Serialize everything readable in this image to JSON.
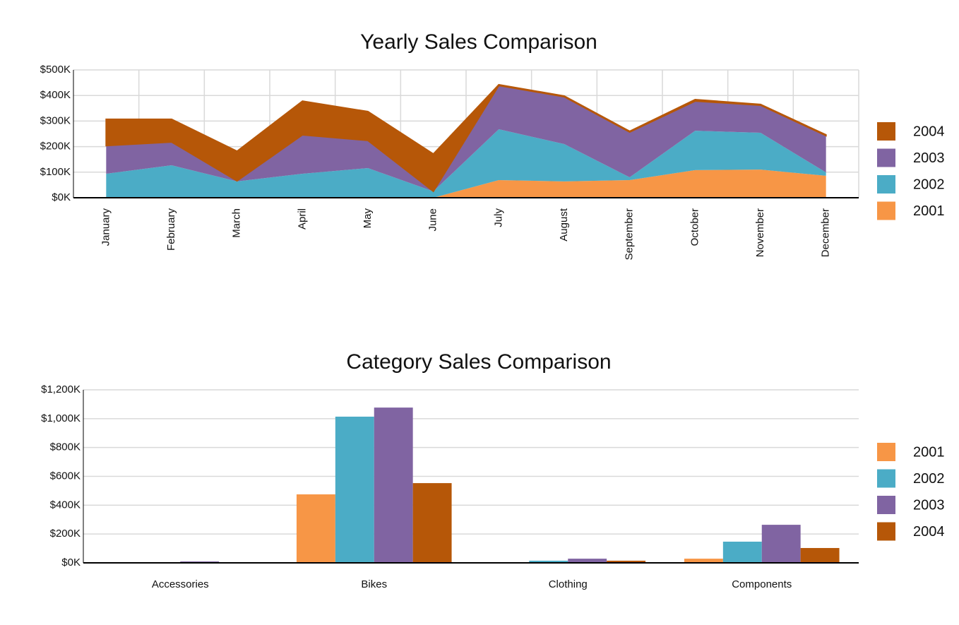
{
  "chart_data": [
    {
      "type": "area",
      "stacked": true,
      "title": "Yearly Sales Comparison",
      "categories": [
        "January",
        "February",
        "March",
        "April",
        "May",
        "June",
        "July",
        "August",
        "September",
        "October",
        "November",
        "December"
      ],
      "series": [
        {
          "name": "2001",
          "color": "#f79646",
          "values": [
            0,
            0,
            0,
            0,
            0,
            0,
            69000,
            64000,
            69000,
            108000,
            110000,
            86000
          ]
        },
        {
          "name": "2002",
          "color": "#4bacc6",
          "values": [
            94000,
            127000,
            64000,
            94000,
            116000,
            25000,
            199000,
            146000,
            11000,
            154000,
            144000,
            13000
          ]
        },
        {
          "name": "2003",
          "color": "#8064a2",
          "values": [
            110000,
            91000,
            2000,
            152000,
            108000,
            0,
            171000,
            185000,
            177000,
            116000,
            108000,
            144000
          ]
        },
        {
          "name": "2004",
          "color": "#b65708",
          "values": [
            103000,
            89000,
            116000,
            132000,
            113000,
            146000,
            3000,
            3000,
            3000,
            6000,
            3000,
            3000
          ]
        }
      ],
      "ylim": [
        0,
        500000
      ],
      "yticks": [
        {
          "value": 0,
          "label": "$0K"
        },
        {
          "value": 100000,
          "label": "$100K"
        },
        {
          "value": 200000,
          "label": "$200K"
        },
        {
          "value": 300000,
          "label": "$300K"
        },
        {
          "value": 400000,
          "label": "$400K"
        },
        {
          "value": 500000,
          "label": "$500K"
        }
      ],
      "grid": true,
      "legend": "right"
    },
    {
      "type": "bar",
      "title": "Category Sales Comparison",
      "categories": [
        "Accessories",
        "Bikes",
        "Clothing",
        "Components"
      ],
      "series": [
        {
          "name": "2001",
          "color": "#f79646",
          "values": [
            0,
            475000,
            0,
            29000
          ]
        },
        {
          "name": "2002",
          "color": "#4bacc6",
          "values": [
            2000,
            1014000,
            15000,
            147000
          ]
        },
        {
          "name": "2003",
          "color": "#8064a2",
          "values": [
            10000,
            1077000,
            29000,
            264000
          ]
        },
        {
          "name": "2004",
          "color": "#b65708",
          "values": [
            5000,
            553000,
            15000,
            103000
          ]
        }
      ],
      "ylim": [
        0,
        1200000
      ],
      "yticks": [
        {
          "value": 0,
          "label": "$0K"
        },
        {
          "value": 200000,
          "label": "$200K"
        },
        {
          "value": 400000,
          "label": "$400K"
        },
        {
          "value": 600000,
          "label": "$600K"
        },
        {
          "value": 800000,
          "label": "$800K"
        },
        {
          "value": 1000000,
          "label": "$1,000K"
        },
        {
          "value": 1200000,
          "label": "$1,200K"
        }
      ],
      "grid": true,
      "legend": "right"
    }
  ]
}
